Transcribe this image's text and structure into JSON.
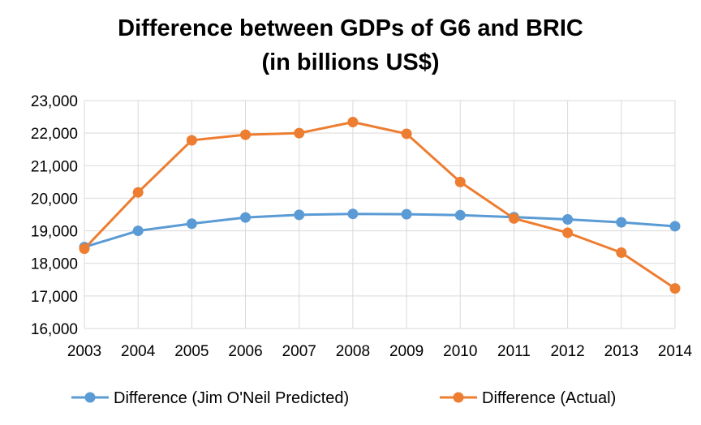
{
  "chart_data": {
    "type": "line",
    "title": "Difference between GDPs of G6 and BRIC",
    "subtitle": "(in billions US$)",
    "xlabel": "",
    "ylabel": "",
    "x": [
      "2003",
      "2004",
      "2005",
      "2006",
      "2007",
      "2008",
      "2009",
      "2010",
      "2011",
      "2012",
      "2013",
      "2014"
    ],
    "ylim": [
      16000,
      23000
    ],
    "yticks": [
      16000,
      17000,
      18000,
      19000,
      20000,
      21000,
      22000,
      23000
    ],
    "ytick_labels": [
      "16,000",
      "17,000",
      "18,000",
      "19,000",
      "20,000",
      "21,000",
      "22,000",
      "23,000"
    ],
    "grid": true,
    "legend_position": "bottom",
    "series": [
      {
        "name": "Difference (Jim O'Neil Predicted)",
        "color": "#5b9bd5",
        "values": [
          18500,
          19000,
          19220,
          19410,
          19490,
          19520,
          19510,
          19480,
          19420,
          19350,
          19260,
          19140
        ]
      },
      {
        "name": "Difference (Actual)",
        "color": "#ed7d31",
        "values": [
          18450,
          20180,
          21780,
          21950,
          22000,
          22340,
          21980,
          20500,
          19380,
          18940,
          18330,
          17230
        ]
      }
    ]
  }
}
